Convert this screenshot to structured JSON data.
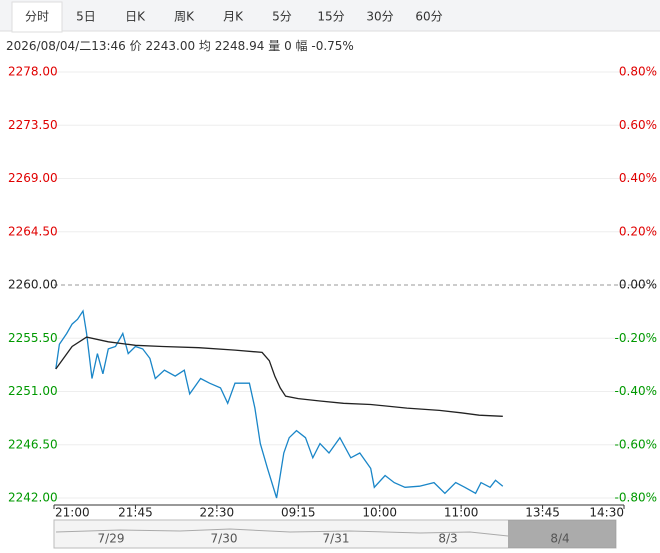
{
  "tabs": [
    "分时",
    "5日",
    "日K",
    "周K",
    "月K",
    "5分",
    "15分",
    "30分",
    "60分"
  ],
  "info": {
    "time": "2026/08/04/二13:46",
    "items": [
      {
        "label": "价",
        "value": "2243.00"
      },
      {
        "label": "均",
        "value": "2248.94"
      },
      {
        "label": "量",
        "value": "0"
      },
      {
        "label": "幅",
        "value": "-0.75%"
      }
    ]
  },
  "chart_data": {
    "type": "line",
    "xlim": [
      0,
      315
    ],
    "xticks": [
      {
        "value": 0,
        "label": "21:00"
      },
      {
        "value": 45,
        "label": "21:45"
      },
      {
        "value": 90,
        "label": "22:30"
      },
      {
        "value": 135,
        "label": "09:15"
      },
      {
        "value": 180,
        "label": "10:00"
      },
      {
        "value": 225,
        "label": "11:00"
      },
      {
        "value": 270,
        "label": "13:45"
      },
      {
        "value": 315,
        "label": "14:30"
      }
    ],
    "ylim": [
      2242,
      2278
    ],
    "yticks": [
      {
        "value": 2278,
        "label": "2278.00"
      },
      {
        "value": 2273.5,
        "label": "2273.50"
      },
      {
        "value": 2269,
        "label": "2269.00"
      },
      {
        "value": 2264.5,
        "label": "2264.50"
      },
      {
        "value": 2260,
        "label": "2260.00"
      },
      {
        "value": 2255.5,
        "label": "2255.50"
      },
      {
        "value": 2251,
        "label": "2251.00"
      },
      {
        "value": 2246.5,
        "label": "2246.50"
      },
      {
        "value": 2242,
        "label": "2242.00"
      }
    ],
    "y2lim": [
      -0.8,
      0.8
    ],
    "y2ticks": [
      {
        "value": 0.8,
        "label": "0.80%"
      },
      {
        "value": 0.6,
        "label": "0.60%"
      },
      {
        "value": 0.4,
        "label": "0.40%"
      },
      {
        "value": 0.2,
        "label": "0.20%"
      },
      {
        "value": 0,
        "label": "0.00%"
      },
      {
        "value": -0.2,
        "label": "-0.20%"
      },
      {
        "value": -0.4,
        "label": "-0.40%"
      },
      {
        "value": -0.6,
        "label": "-0.60%"
      },
      {
        "value": -0.8,
        "label": "-0.80%"
      }
    ],
    "grid": true,
    "series": [
      {
        "color": "#1a86c8",
        "x": [
          1,
          3,
          7,
          10,
          13,
          16,
          18,
          21,
          24,
          27,
          30,
          34,
          38,
          41,
          45,
          49,
          53,
          56,
          61,
          67,
          72,
          75,
          81,
          86,
          92,
          96,
          100,
          106,
          108,
          111,
          114,
          118,
          123,
          127,
          130,
          134,
          139,
          143,
          147,
          152,
          158,
          164,
          169,
          175,
          177,
          183,
          188,
          194,
          202,
          210,
          216,
          222,
          227,
          233,
          236,
          241,
          244,
          248
        ],
        "values": [
          2252.9,
          2255.0,
          2255.9,
          2256.7,
          2257.1,
          2257.8,
          2255.9,
          2252.1,
          2254.2,
          2252.5,
          2254.6,
          2254.8,
          2255.9,
          2254.2,
          2254.8,
          2254.6,
          2253.8,
          2252.1,
          2252.8,
          2252.3,
          2252.8,
          2250.8,
          2252.1,
          2251.7,
          2251.3,
          2250.0,
          2251.7,
          2251.7,
          2251.7,
          2249.6,
          2246.6,
          2244.5,
          2242.0,
          2245.8,
          2247.1,
          2247.7,
          2247.1,
          2245.4,
          2246.6,
          2245.8,
          2247.1,
          2245.4,
          2245.8,
          2244.5,
          2242.9,
          2243.9,
          2243.3,
          2242.9,
          2243.0,
          2243.3,
          2242.4,
          2243.3,
          2242.9,
          2242.4,
          2243.3,
          2242.9,
          2243.5,
          2243.0
        ]
      },
      {
        "color": "#222222",
        "x": [
          1,
          10,
          18,
          30,
          45,
          60,
          80,
          100,
          115,
          119,
          122,
          125,
          128,
          135,
          147,
          160,
          175,
          195,
          213,
          225,
          235,
          248
        ],
        "values": [
          2252.9,
          2254.8,
          2255.6,
          2255.2,
          2254.9,
          2254.8,
          2254.7,
          2254.5,
          2254.3,
          2253.6,
          2252.3,
          2251.3,
          2250.6,
          2250.4,
          2250.2,
          2250.0,
          2249.9,
          2249.6,
          2249.4,
          2249.2,
          2249.0,
          2248.9
        ]
      }
    ]
  },
  "navigator": {
    "labels": [
      "7/29",
      "7/30",
      "7/31",
      "8/3",
      "8/4"
    ]
  }
}
